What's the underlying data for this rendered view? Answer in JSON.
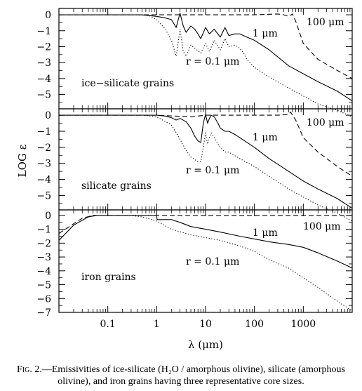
{
  "caption": {
    "figure_label": "Fig. 2.",
    "text": "—Emissivities of ice-silicate (H₂O / amorphous olivine), silicate (amorphous olivine), and iron grains having three representative core sizes."
  },
  "chart_data": [
    {
      "type": "line",
      "panel": "ice-silicate grains",
      "xscale": "log",
      "xlim": [
        0.01,
        10000
      ],
      "ylim": [
        -5.9,
        0.4
      ],
      "xlabel": "λ (μm)",
      "ylabel": "LOG ε",
      "x_tick_labels": [
        "",
        "",
        "",
        "",
        "",
        "",
        ""
      ],
      "y_ticks": [
        0,
        -1,
        -2,
        -3,
        -4,
        -5
      ],
      "y_tick_labels": [
        "0",
        "−1",
        "−2",
        "−3",
        "−4",
        "−5"
      ],
      "annotations": [
        "100 μm",
        "1 μm",
        "r = 0.1 μm",
        "ice−silicate grains"
      ],
      "series": [
        {
          "name": "100 μm",
          "style": "dashed",
          "x": [
            0.01,
            10,
            100,
            300,
            400,
            500,
            600,
            700,
            1000,
            2000,
            5000,
            10000
          ],
          "y": [
            0,
            0,
            0,
            0.05,
            0,
            -0.1,
            0.05,
            -0.4,
            -1.8,
            -2.8,
            -3.5,
            -4
          ]
        },
        {
          "name": "1 μm",
          "style": "solid",
          "x": [
            0.01,
            0.5,
            1,
            1.5,
            2,
            2.5,
            3,
            3.5,
            4,
            5,
            6,
            7,
            8,
            10,
            12,
            15,
            20,
            25,
            30,
            40,
            50,
            70,
            100,
            200,
            500,
            1000,
            2000,
            5000,
            10000
          ],
          "y": [
            0,
            0,
            -0.1,
            -0.2,
            -0.3,
            -0.8,
            0.1,
            -0.7,
            -1.1,
            -0.7,
            -0.9,
            -1.2,
            -1.5,
            -0.8,
            -1.2,
            -0.9,
            -1.4,
            -0.8,
            -1.3,
            -1.2,
            -1.2,
            -1.4,
            -1.6,
            -2.2,
            -3.2,
            -3.7,
            -4.2,
            -4.8,
            -5.4
          ]
        },
        {
          "name": "r = 0.1 μm",
          "style": "dotted",
          "x": [
            0.01,
            0.4,
            0.7,
            1,
            1.5,
            2,
            2.5,
            3,
            3.5,
            4,
            5,
            6,
            8,
            10,
            12,
            15,
            20,
            25,
            30,
            40,
            50,
            60,
            70,
            100,
            200,
            500,
            1000,
            2000,
            5000,
            10000
          ],
          "y": [
            0,
            0,
            -0.05,
            -0.3,
            -0.9,
            -1.6,
            -2.6,
            -0.9,
            -2.3,
            -2.6,
            -1.9,
            -2.1,
            -2.4,
            -1.8,
            -2.3,
            -1.6,
            -2.2,
            -1.5,
            -2,
            -1.9,
            -2.1,
            -2.4,
            -2.8,
            -3.3,
            -3.9,
            -4.6,
            -5.1,
            -5.6,
            -6,
            -6.4
          ]
        }
      ]
    },
    {
      "type": "line",
      "panel": "silicate grains",
      "xscale": "log",
      "xlim": [
        0.01,
        10000
      ],
      "ylim": [
        -5.9,
        0.4
      ],
      "xlabel": "λ (μm)",
      "ylabel": "LOG ε",
      "x_tick_labels": [
        "",
        "",
        "",
        "",
        "",
        "",
        ""
      ],
      "y_ticks": [
        0,
        -1,
        -2,
        -3,
        -4,
        -5
      ],
      "y_tick_labels": [
        "0",
        "−1",
        "−2",
        "−3",
        "−4",
        "−5"
      ],
      "annotations": [
        "100 μm",
        "1 μm",
        "r = 0.1 μm",
        "silicate grains"
      ],
      "series": [
        {
          "name": "100 μm",
          "style": "dashed",
          "x": [
            0.01,
            1,
            5,
            10,
            100,
            300,
            500,
            550,
            600,
            700,
            1000,
            2000,
            5000,
            10000
          ],
          "y": [
            0,
            0,
            -0.1,
            0,
            0,
            0,
            0.05,
            0.2,
            0,
            -0.3,
            -1.4,
            -2.3,
            -3.2,
            -3.8
          ]
        },
        {
          "name": "1 μm",
          "style": "solid",
          "x": [
            0.01,
            1,
            1.5,
            2,
            2.5,
            3,
            4,
            5,
            6,
            7,
            8,
            9,
            10,
            11,
            12,
            13,
            15,
            18,
            20,
            25,
            30,
            40,
            50,
            100,
            200,
            500,
            1000,
            2000,
            5000,
            10000
          ],
          "y": [
            0,
            0,
            -0.05,
            -0.15,
            -0.3,
            -0.2,
            -0.4,
            -0.8,
            -1.3,
            -1.6,
            -1.7,
            -0.5,
            0.05,
            -0.5,
            -0.2,
            0,
            -0.1,
            -0.5,
            -0.8,
            -1,
            -1,
            -1.2,
            -1.4,
            -2,
            -2.7,
            -3.5,
            -4.1,
            -4.6,
            -5.2,
            -5.8
          ]
        },
        {
          "name": "r = 0.1 μm",
          "style": "dotted",
          "x": [
            0.01,
            0.5,
            1,
            2,
            3,
            4,
            5,
            7,
            8,
            9,
            10,
            11,
            12,
            13,
            15,
            18,
            20,
            25,
            30,
            50,
            100,
            200,
            500,
            1000,
            2000,
            5000,
            10000
          ],
          "y": [
            0,
            0,
            -0.1,
            -0.6,
            -1.5,
            -2.2,
            -2.6,
            -2.9,
            -2.9,
            -2,
            -1.1,
            -1.8,
            -1.4,
            -1.1,
            -1.4,
            -1.8,
            -2,
            -2.3,
            -2.3,
            -2.7,
            -3.2,
            -3.8,
            -4.6,
            -5.1,
            -5.6,
            -6.1,
            -6.6
          ]
        }
      ]
    },
    {
      "type": "line",
      "panel": "iron grains",
      "xscale": "log",
      "xlim": [
        0.01,
        10000
      ],
      "ylim": [
        -7,
        0.4
      ],
      "xlabel": "λ (μm)",
      "ylabel": "LOG ε",
      "x_ticks": [
        0.1,
        1,
        10,
        100,
        1000
      ],
      "x_tick_labels": [
        "0.1",
        "1",
        "10",
        "100",
        "1000"
      ],
      "y_ticks": [
        0,
        -1,
        -2,
        -3,
        -4,
        -5,
        -6,
        -7
      ],
      "y_tick_labels": [
        "0",
        "−1",
        "−2",
        "−3",
        "−4",
        "−5",
        "−6",
        "−7"
      ],
      "annotations": [
        "100 μm",
        "1 μm",
        "r = 0.1 μm",
        "iron grains"
      ],
      "series": [
        {
          "name": "100 μm",
          "style": "dashed",
          "x": [
            0.01,
            0.02,
            0.03,
            0.05,
            10000
          ],
          "y": [
            -1.3,
            -0.6,
            -0.2,
            0,
            0
          ]
        },
        {
          "name": "1 μm",
          "style": "solid",
          "x": [
            0.01,
            0.02,
            0.04,
            0.06,
            1,
            1.02,
            2,
            3,
            5,
            10,
            20,
            50,
            100,
            200,
            500,
            1000,
            2000,
            5000,
            10000
          ],
          "y": [
            -1.8,
            -0.7,
            -0.1,
            0,
            0,
            -0.3,
            -0.3,
            -0.5,
            -0.8,
            -1,
            -1.2,
            -1.5,
            -1.7,
            -1.9,
            -2.1,
            -2.3,
            -2.7,
            -3.3,
            -3.8
          ]
        },
        {
          "name": "r = 0.1 μm",
          "style": "dotted",
          "x": [
            0.01,
            0.02,
            0.04,
            0.05,
            0.3,
            0.5,
            1,
            2,
            5,
            10,
            20,
            50,
            100,
            200,
            500,
            1000,
            2000,
            5000,
            10000
          ],
          "y": [
            -1.8,
            -0.7,
            -0.1,
            0,
            0,
            -0.1,
            -0.4,
            -1,
            -1.4,
            -1.6,
            -1.8,
            -2.2,
            -2.6,
            -3.2,
            -3.8,
            -4.5,
            -5.2,
            -6.2,
            -6.9
          ]
        }
      ]
    }
  ]
}
